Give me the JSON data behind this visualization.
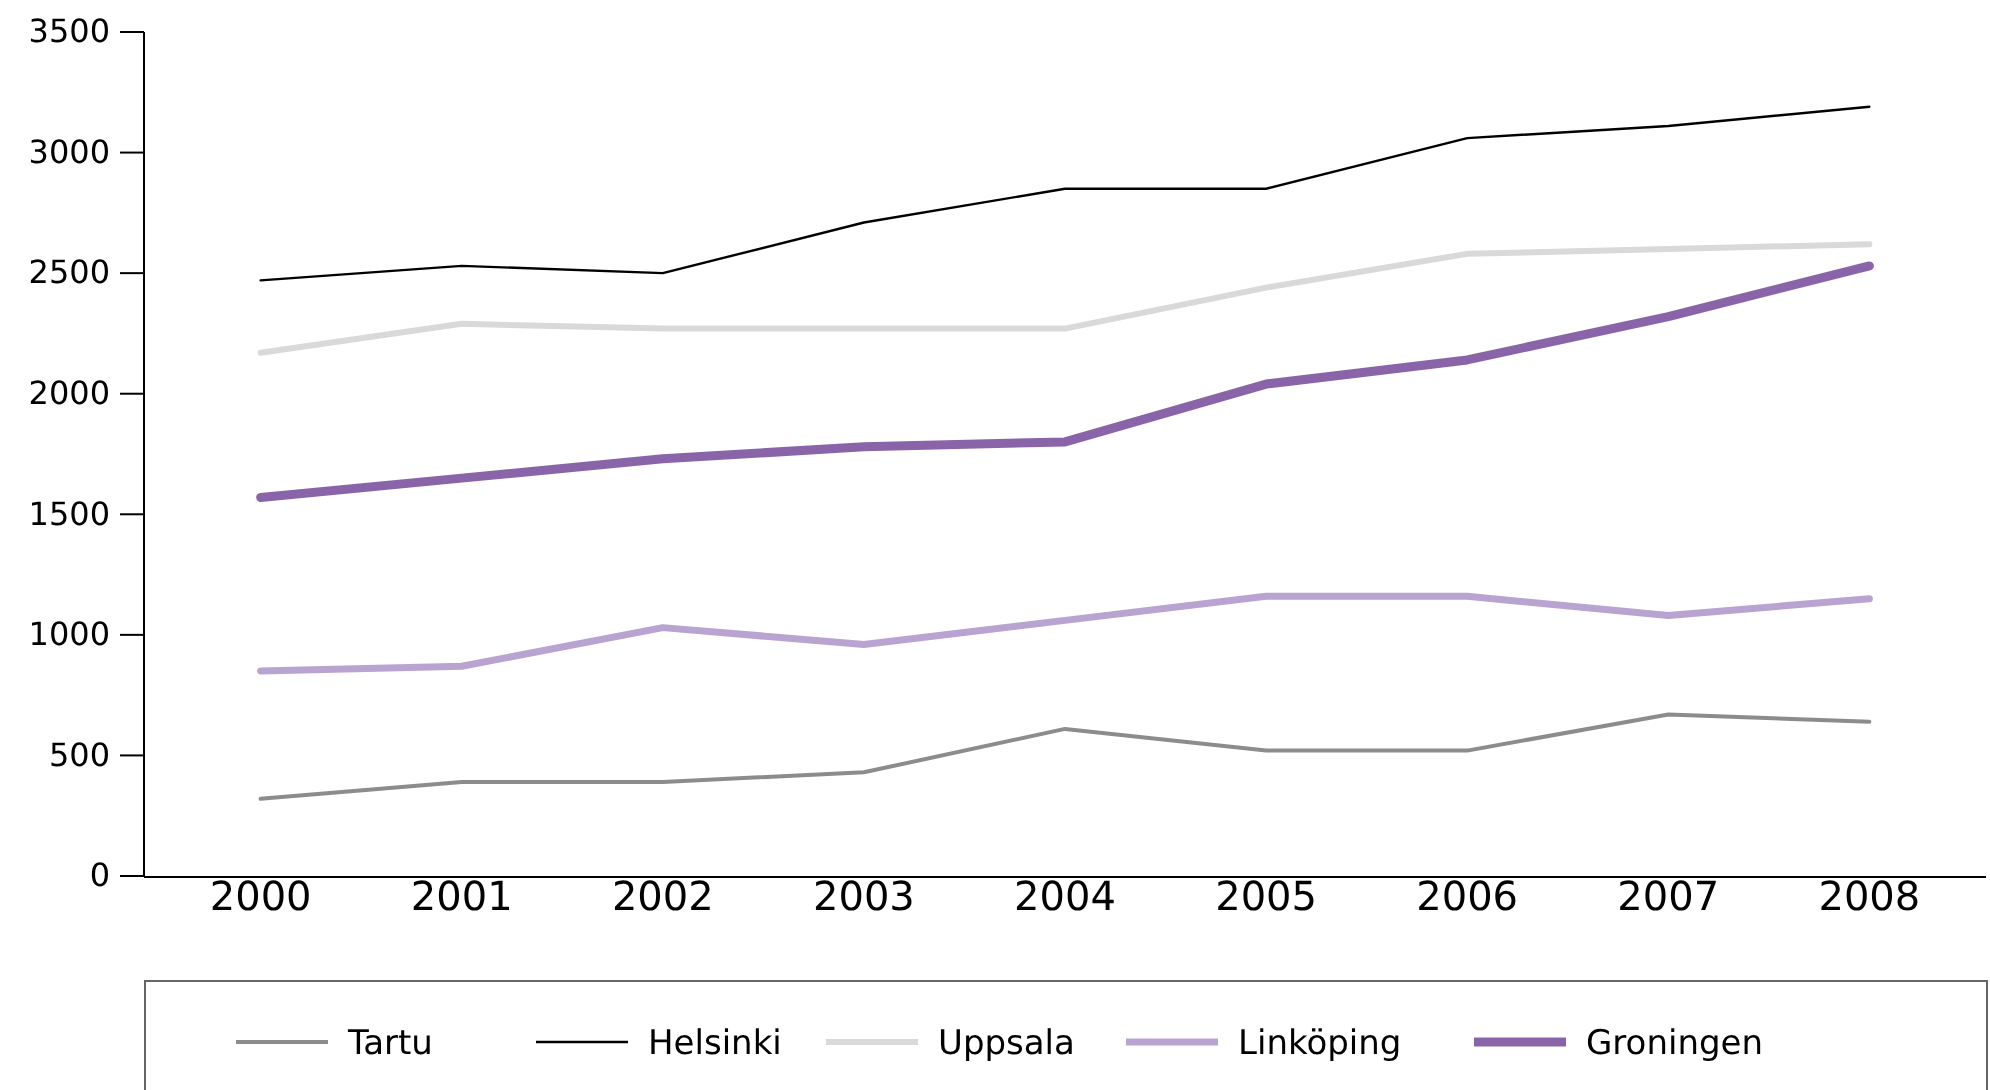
{
  "chart_data": {
    "type": "line",
    "categories": [
      "2000",
      "2001",
      "2002",
      "2003",
      "2004",
      "2005",
      "2006",
      "2007",
      "2008"
    ],
    "ylim": [
      0,
      3500
    ],
    "yticks": [
      0,
      500,
      1000,
      1500,
      2000,
      2500,
      3000,
      3500
    ],
    "legend": "bottom",
    "grid": false,
    "marker": "none",
    "line_style": "solid",
    "series": [
      {
        "name": "Tartu",
        "color": "#8c8c8c",
        "values": [
          320,
          390,
          390,
          430,
          610,
          520,
          520,
          670,
          640
        ]
      },
      {
        "name": "Helsinki",
        "color": "#000000",
        "values": [
          2470,
          2530,
          2500,
          2710,
          2850,
          2850,
          3060,
          3110,
          3190
        ]
      },
      {
        "name": "Uppsala",
        "color": "#d9d9d9",
        "values": [
          2170,
          2290,
          2270,
          2270,
          2270,
          2440,
          2580,
          2600,
          2620
        ]
      },
      {
        "name": "Linköping",
        "color": "#b9a3d0",
        "values": [
          850,
          870,
          1030,
          960,
          1060,
          1160,
          1160,
          1080,
          1150
        ]
      },
      {
        "name": "Groningen",
        "color": "#8a64a8",
        "values": [
          1570,
          1650,
          1730,
          1780,
          1800,
          2040,
          2140,
          2320,
          2530
        ]
      }
    ]
  }
}
